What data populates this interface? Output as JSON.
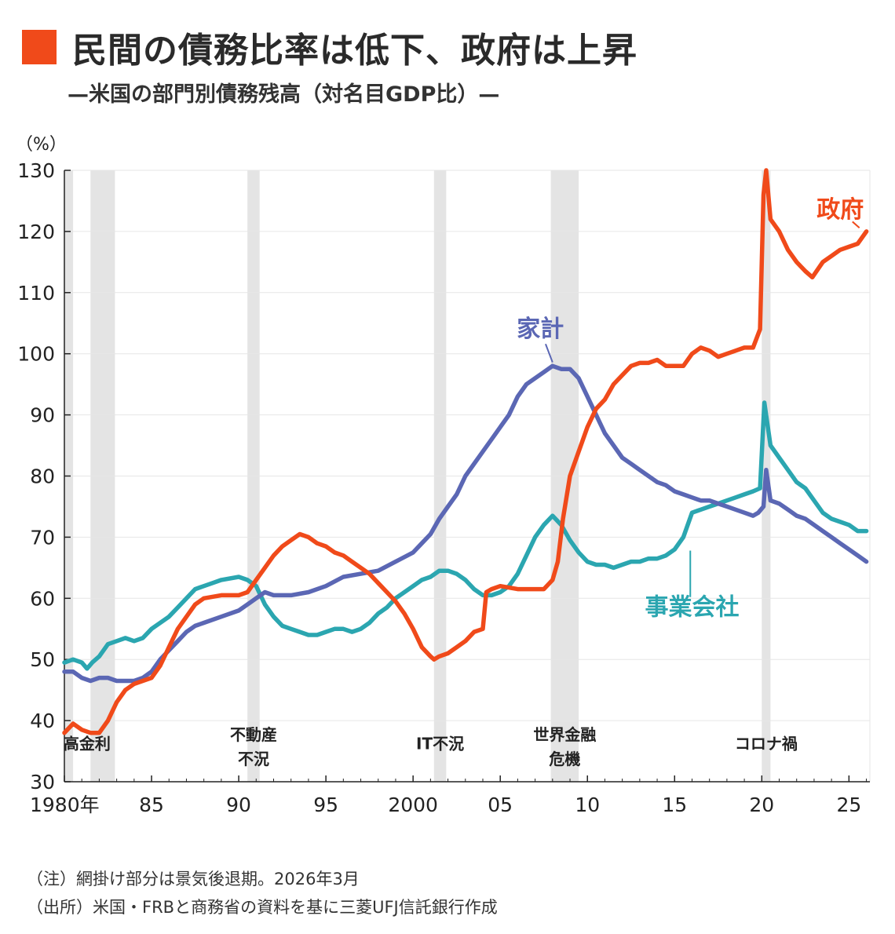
{
  "title": "民間の債務比率は低下、政府は上昇",
  "subtitle": "—米国の部門別債務残高（対名目GDP比）—",
  "notes": [
    "（注）網掛け部分は景気後退期。2026年3月",
    "（出所）米国・FRBと商務省の資料を基に三菱UFJ信託銀行作成"
  ],
  "colors": {
    "title_mark": "#f04a1a",
    "government": "#f04a1a",
    "household": "#5b67b4",
    "corporate": "#2ba6b0",
    "recession": "#e4e4e4"
  },
  "chart_data": {
    "type": "line",
    "ylabel": "（%）",
    "ylim": [
      30,
      130
    ],
    "xlim": [
      1980,
      2026.2
    ],
    "yticks": [
      30,
      40,
      50,
      60,
      70,
      80,
      90,
      100,
      110,
      120,
      130
    ],
    "xticks": [
      {
        "value": 1980,
        "label": "1980年"
      },
      {
        "value": 1985,
        "label": "85"
      },
      {
        "value": 1990,
        "label": "90"
      },
      {
        "value": 1995,
        "label": "95"
      },
      {
        "value": 2000,
        "label": "2000"
      },
      {
        "value": 2005,
        "label": "05"
      },
      {
        "value": 2010,
        "label": "10"
      },
      {
        "value": 2015,
        "label": "15"
      },
      {
        "value": 2020,
        "label": "20"
      },
      {
        "value": 2025,
        "label": "25"
      }
    ],
    "grid": true,
    "recessions": [
      {
        "start": 1980.0,
        "end": 1980.5,
        "label": ""
      },
      {
        "start": 1981.5,
        "end": 1982.9,
        "label": "高金利"
      },
      {
        "start": 1990.5,
        "end": 1991.2,
        "label": "不動産\n不況"
      },
      {
        "start": 2001.2,
        "end": 2001.9,
        "label": "IT不況"
      },
      {
        "start": 2007.9,
        "end": 2009.5,
        "label": "世界金融\n危機"
      },
      {
        "start": 2020.0,
        "end": 2020.5,
        "label": "コロナ禍"
      }
    ],
    "series": [
      {
        "name": "政府",
        "key": "government",
        "points": [
          [
            1980,
            38
          ],
          [
            1980.5,
            39.5
          ],
          [
            1981,
            38.5
          ],
          [
            1981.5,
            38
          ],
          [
            1982,
            38
          ],
          [
            1982.5,
            40
          ],
          [
            1983,
            43
          ],
          [
            1983.5,
            45
          ],
          [
            1984,
            46
          ],
          [
            1985,
            47
          ],
          [
            1985.5,
            49
          ],
          [
            1986,
            52
          ],
          [
            1986.5,
            55
          ],
          [
            1987,
            57
          ],
          [
            1987.5,
            59
          ],
          [
            1988,
            60
          ],
          [
            1989,
            60.5
          ],
          [
            1990,
            60.5
          ],
          [
            1990.5,
            61
          ],
          [
            1991,
            63
          ],
          [
            1991.5,
            65
          ],
          [
            1992,
            67
          ],
          [
            1992.5,
            68.5
          ],
          [
            1993,
            69.5
          ],
          [
            1993.5,
            70.5
          ],
          [
            1994,
            70
          ],
          [
            1994.5,
            69
          ],
          [
            1995,
            68.5
          ],
          [
            1995.5,
            67.5
          ],
          [
            1996,
            67
          ],
          [
            1996.5,
            66
          ],
          [
            1997,
            65
          ],
          [
            1997.5,
            64
          ],
          [
            1998,
            62.5
          ],
          [
            1998.5,
            61
          ],
          [
            1999,
            59.5
          ],
          [
            1999.5,
            57.5
          ],
          [
            2000,
            55
          ],
          [
            2000.5,
            52
          ],
          [
            2001,
            50.5
          ],
          [
            2001.2,
            50
          ],
          [
            2001.5,
            50.5
          ],
          [
            2002,
            51
          ],
          [
            2002.5,
            52
          ],
          [
            2003,
            53
          ],
          [
            2003.5,
            54.5
          ],
          [
            2004,
            55
          ],
          [
            2004.2,
            61
          ],
          [
            2004.5,
            61.5
          ],
          [
            2005,
            62
          ],
          [
            2006,
            61.5
          ],
          [
            2007,
            61.5
          ],
          [
            2007.5,
            61.5
          ],
          [
            2008,
            63
          ],
          [
            2008.3,
            66
          ],
          [
            2008.6,
            73
          ],
          [
            2009,
            80
          ],
          [
            2009.5,
            84
          ],
          [
            2010,
            88
          ],
          [
            2010.5,
            91
          ],
          [
            2011,
            92.5
          ],
          [
            2011.5,
            95
          ],
          [
            2012,
            96.5
          ],
          [
            2012.5,
            98
          ],
          [
            2013,
            98.5
          ],
          [
            2013.5,
            98.5
          ],
          [
            2014,
            99
          ],
          [
            2014.5,
            98
          ],
          [
            2015,
            98
          ],
          [
            2015.5,
            98
          ],
          [
            2016,
            100
          ],
          [
            2016.5,
            101
          ],
          [
            2017,
            100.5
          ],
          [
            2017.5,
            99.5
          ],
          [
            2018,
            100
          ],
          [
            2018.5,
            100.5
          ],
          [
            2019,
            101
          ],
          [
            2019.5,
            101
          ],
          [
            2019.9,
            104
          ],
          [
            2020.1,
            126
          ],
          [
            2020.25,
            130
          ],
          [
            2020.5,
            122
          ],
          [
            2021,
            120
          ],
          [
            2021.5,
            117
          ],
          [
            2022,
            115
          ],
          [
            2022.5,
            113.5
          ],
          [
            2022.9,
            112.5
          ],
          [
            2023.5,
            115
          ],
          [
            2024,
            116
          ],
          [
            2024.5,
            117
          ],
          [
            2025,
            117.5
          ],
          [
            2025.5,
            118
          ],
          [
            2026,
            120
          ]
        ]
      },
      {
        "name": "家計",
        "key": "household",
        "points": [
          [
            1980,
            48
          ],
          [
            1980.5,
            48
          ],
          [
            1981,
            47
          ],
          [
            1981.5,
            46.5
          ],
          [
            1982,
            47
          ],
          [
            1982.5,
            47
          ],
          [
            1983,
            46.5
          ],
          [
            1983.5,
            46.5
          ],
          [
            1984,
            46.5
          ],
          [
            1984.5,
            47
          ],
          [
            1985,
            48
          ],
          [
            1985.5,
            50
          ],
          [
            1986,
            51.5
          ],
          [
            1986.5,
            53
          ],
          [
            1987,
            54.5
          ],
          [
            1987.5,
            55.5
          ],
          [
            1988,
            56
          ],
          [
            1989,
            57
          ],
          [
            1990,
            58
          ],
          [
            1990.5,
            59
          ],
          [
            1991,
            60
          ],
          [
            1991.5,
            61
          ],
          [
            1992,
            60.5
          ],
          [
            1993,
            60.5
          ],
          [
            1994,
            61
          ],
          [
            1995,
            62
          ],
          [
            1996,
            63.5
          ],
          [
            1997,
            64
          ],
          [
            1998,
            64.5
          ],
          [
            1999,
            66
          ],
          [
            2000,
            67.5
          ],
          [
            2000.5,
            69
          ],
          [
            2001,
            70.5
          ],
          [
            2001.5,
            73
          ],
          [
            2002,
            75
          ],
          [
            2002.5,
            77
          ],
          [
            2003,
            80
          ],
          [
            2003.5,
            82
          ],
          [
            2004,
            84
          ],
          [
            2004.5,
            86
          ],
          [
            2005,
            88
          ],
          [
            2005.5,
            90
          ],
          [
            2006,
            93
          ],
          [
            2006.5,
            95
          ],
          [
            2007,
            96
          ],
          [
            2007.5,
            97
          ],
          [
            2008,
            98
          ],
          [
            2008.5,
            97.5
          ],
          [
            2009,
            97.5
          ],
          [
            2009.5,
            96
          ],
          [
            2010,
            93
          ],
          [
            2010.5,
            90
          ],
          [
            2011,
            87
          ],
          [
            2011.5,
            85
          ],
          [
            2012,
            83
          ],
          [
            2012.5,
            82
          ],
          [
            2013,
            81
          ],
          [
            2013.5,
            80
          ],
          [
            2014,
            79
          ],
          [
            2014.5,
            78.5
          ],
          [
            2015,
            77.5
          ],
          [
            2015.5,
            77
          ],
          [
            2016,
            76.5
          ],
          [
            2016.5,
            76
          ],
          [
            2017,
            76
          ],
          [
            2017.5,
            75.5
          ],
          [
            2018,
            75
          ],
          [
            2018.5,
            74.5
          ],
          [
            2019,
            74
          ],
          [
            2019.5,
            73.5
          ],
          [
            2019.8,
            74
          ],
          [
            2020.1,
            75
          ],
          [
            2020.25,
            81
          ],
          [
            2020.5,
            76
          ],
          [
            2021,
            75.5
          ],
          [
            2021.5,
            74.5
          ],
          [
            2022,
            73.5
          ],
          [
            2022.5,
            73
          ],
          [
            2023,
            72
          ],
          [
            2023.5,
            71
          ],
          [
            2024,
            70
          ],
          [
            2024.5,
            69
          ],
          [
            2025,
            68
          ],
          [
            2025.5,
            67
          ],
          [
            2026,
            66
          ]
        ]
      },
      {
        "name": "事業会社",
        "key": "corporate",
        "points": [
          [
            1980,
            49.5
          ],
          [
            1980.5,
            50
          ],
          [
            1981,
            49.5
          ],
          [
            1981.3,
            48.5
          ],
          [
            1981.6,
            49.5
          ],
          [
            1982,
            50.5
          ],
          [
            1982.5,
            52.5
          ],
          [
            1983,
            53
          ],
          [
            1983.5,
            53.5
          ],
          [
            1984,
            53
          ],
          [
            1984.5,
            53.5
          ],
          [
            1985,
            55
          ],
          [
            1985.5,
            56
          ],
          [
            1986,
            57
          ],
          [
            1986.5,
            58.5
          ],
          [
            1987,
            60
          ],
          [
            1987.5,
            61.5
          ],
          [
            1988,
            62
          ],
          [
            1988.5,
            62.5
          ],
          [
            1989,
            63
          ],
          [
            1990,
            63.5
          ],
          [
            1990.5,
            63
          ],
          [
            1991,
            62
          ],
          [
            1991.5,
            59
          ],
          [
            1992,
            57
          ],
          [
            1992.5,
            55.5
          ],
          [
            1993,
            55
          ],
          [
            1993.5,
            54.5
          ],
          [
            1994,
            54
          ],
          [
            1994.5,
            54
          ],
          [
            1995,
            54.5
          ],
          [
            1995.5,
            55
          ],
          [
            1996,
            55
          ],
          [
            1996.5,
            54.5
          ],
          [
            1997,
            55
          ],
          [
            1997.5,
            56
          ],
          [
            1998,
            57.5
          ],
          [
            1998.5,
            58.5
          ],
          [
            1999,
            60
          ],
          [
            1999.5,
            61
          ],
          [
            2000,
            62
          ],
          [
            2000.5,
            63
          ],
          [
            2001,
            63.5
          ],
          [
            2001.5,
            64.5
          ],
          [
            2002,
            64.5
          ],
          [
            2002.5,
            64
          ],
          [
            2003,
            63
          ],
          [
            2003.5,
            61.5
          ],
          [
            2004,
            60.5
          ],
          [
            2004.5,
            60.5
          ],
          [
            2005,
            61
          ],
          [
            2005.5,
            62
          ],
          [
            2006,
            64
          ],
          [
            2006.5,
            67
          ],
          [
            2007,
            70
          ],
          [
            2007.5,
            72
          ],
          [
            2008,
            73.5
          ],
          [
            2008.5,
            72
          ],
          [
            2009,
            69.5
          ],
          [
            2009.5,
            67.5
          ],
          [
            2010,
            66
          ],
          [
            2010.5,
            65.5
          ],
          [
            2011,
            65.5
          ],
          [
            2011.5,
            65
          ],
          [
            2012,
            65.5
          ],
          [
            2012.5,
            66
          ],
          [
            2013,
            66
          ],
          [
            2013.5,
            66.5
          ],
          [
            2014,
            66.5
          ],
          [
            2014.5,
            67
          ],
          [
            2015,
            68
          ],
          [
            2015.5,
            70
          ],
          [
            2016,
            74
          ],
          [
            2016.5,
            74.5
          ],
          [
            2017,
            75
          ],
          [
            2017.5,
            75.5
          ],
          [
            2018,
            76
          ],
          [
            2018.5,
            76.5
          ],
          [
            2019,
            77
          ],
          [
            2019.5,
            77.5
          ],
          [
            2019.9,
            78
          ],
          [
            2020.15,
            92
          ],
          [
            2020.5,
            85
          ],
          [
            2021,
            83
          ],
          [
            2021.5,
            81
          ],
          [
            2022,
            79
          ],
          [
            2022.5,
            78
          ],
          [
            2023,
            76
          ],
          [
            2023.5,
            74
          ],
          [
            2024,
            73
          ],
          [
            2024.5,
            72.5
          ],
          [
            2025,
            72
          ],
          [
            2025.5,
            71
          ],
          [
            2026,
            71
          ]
        ]
      }
    ],
    "series_labels": [
      {
        "key": "government",
        "text": "政府",
        "at": [
          2025.5,
          120
        ]
      },
      {
        "key": "household",
        "text": "家計",
        "at": [
          2008.0,
          98.5
        ]
      },
      {
        "key": "corporate",
        "text": "事業会社",
        "at": [
          2015.9,
          67.5
        ]
      }
    ]
  }
}
